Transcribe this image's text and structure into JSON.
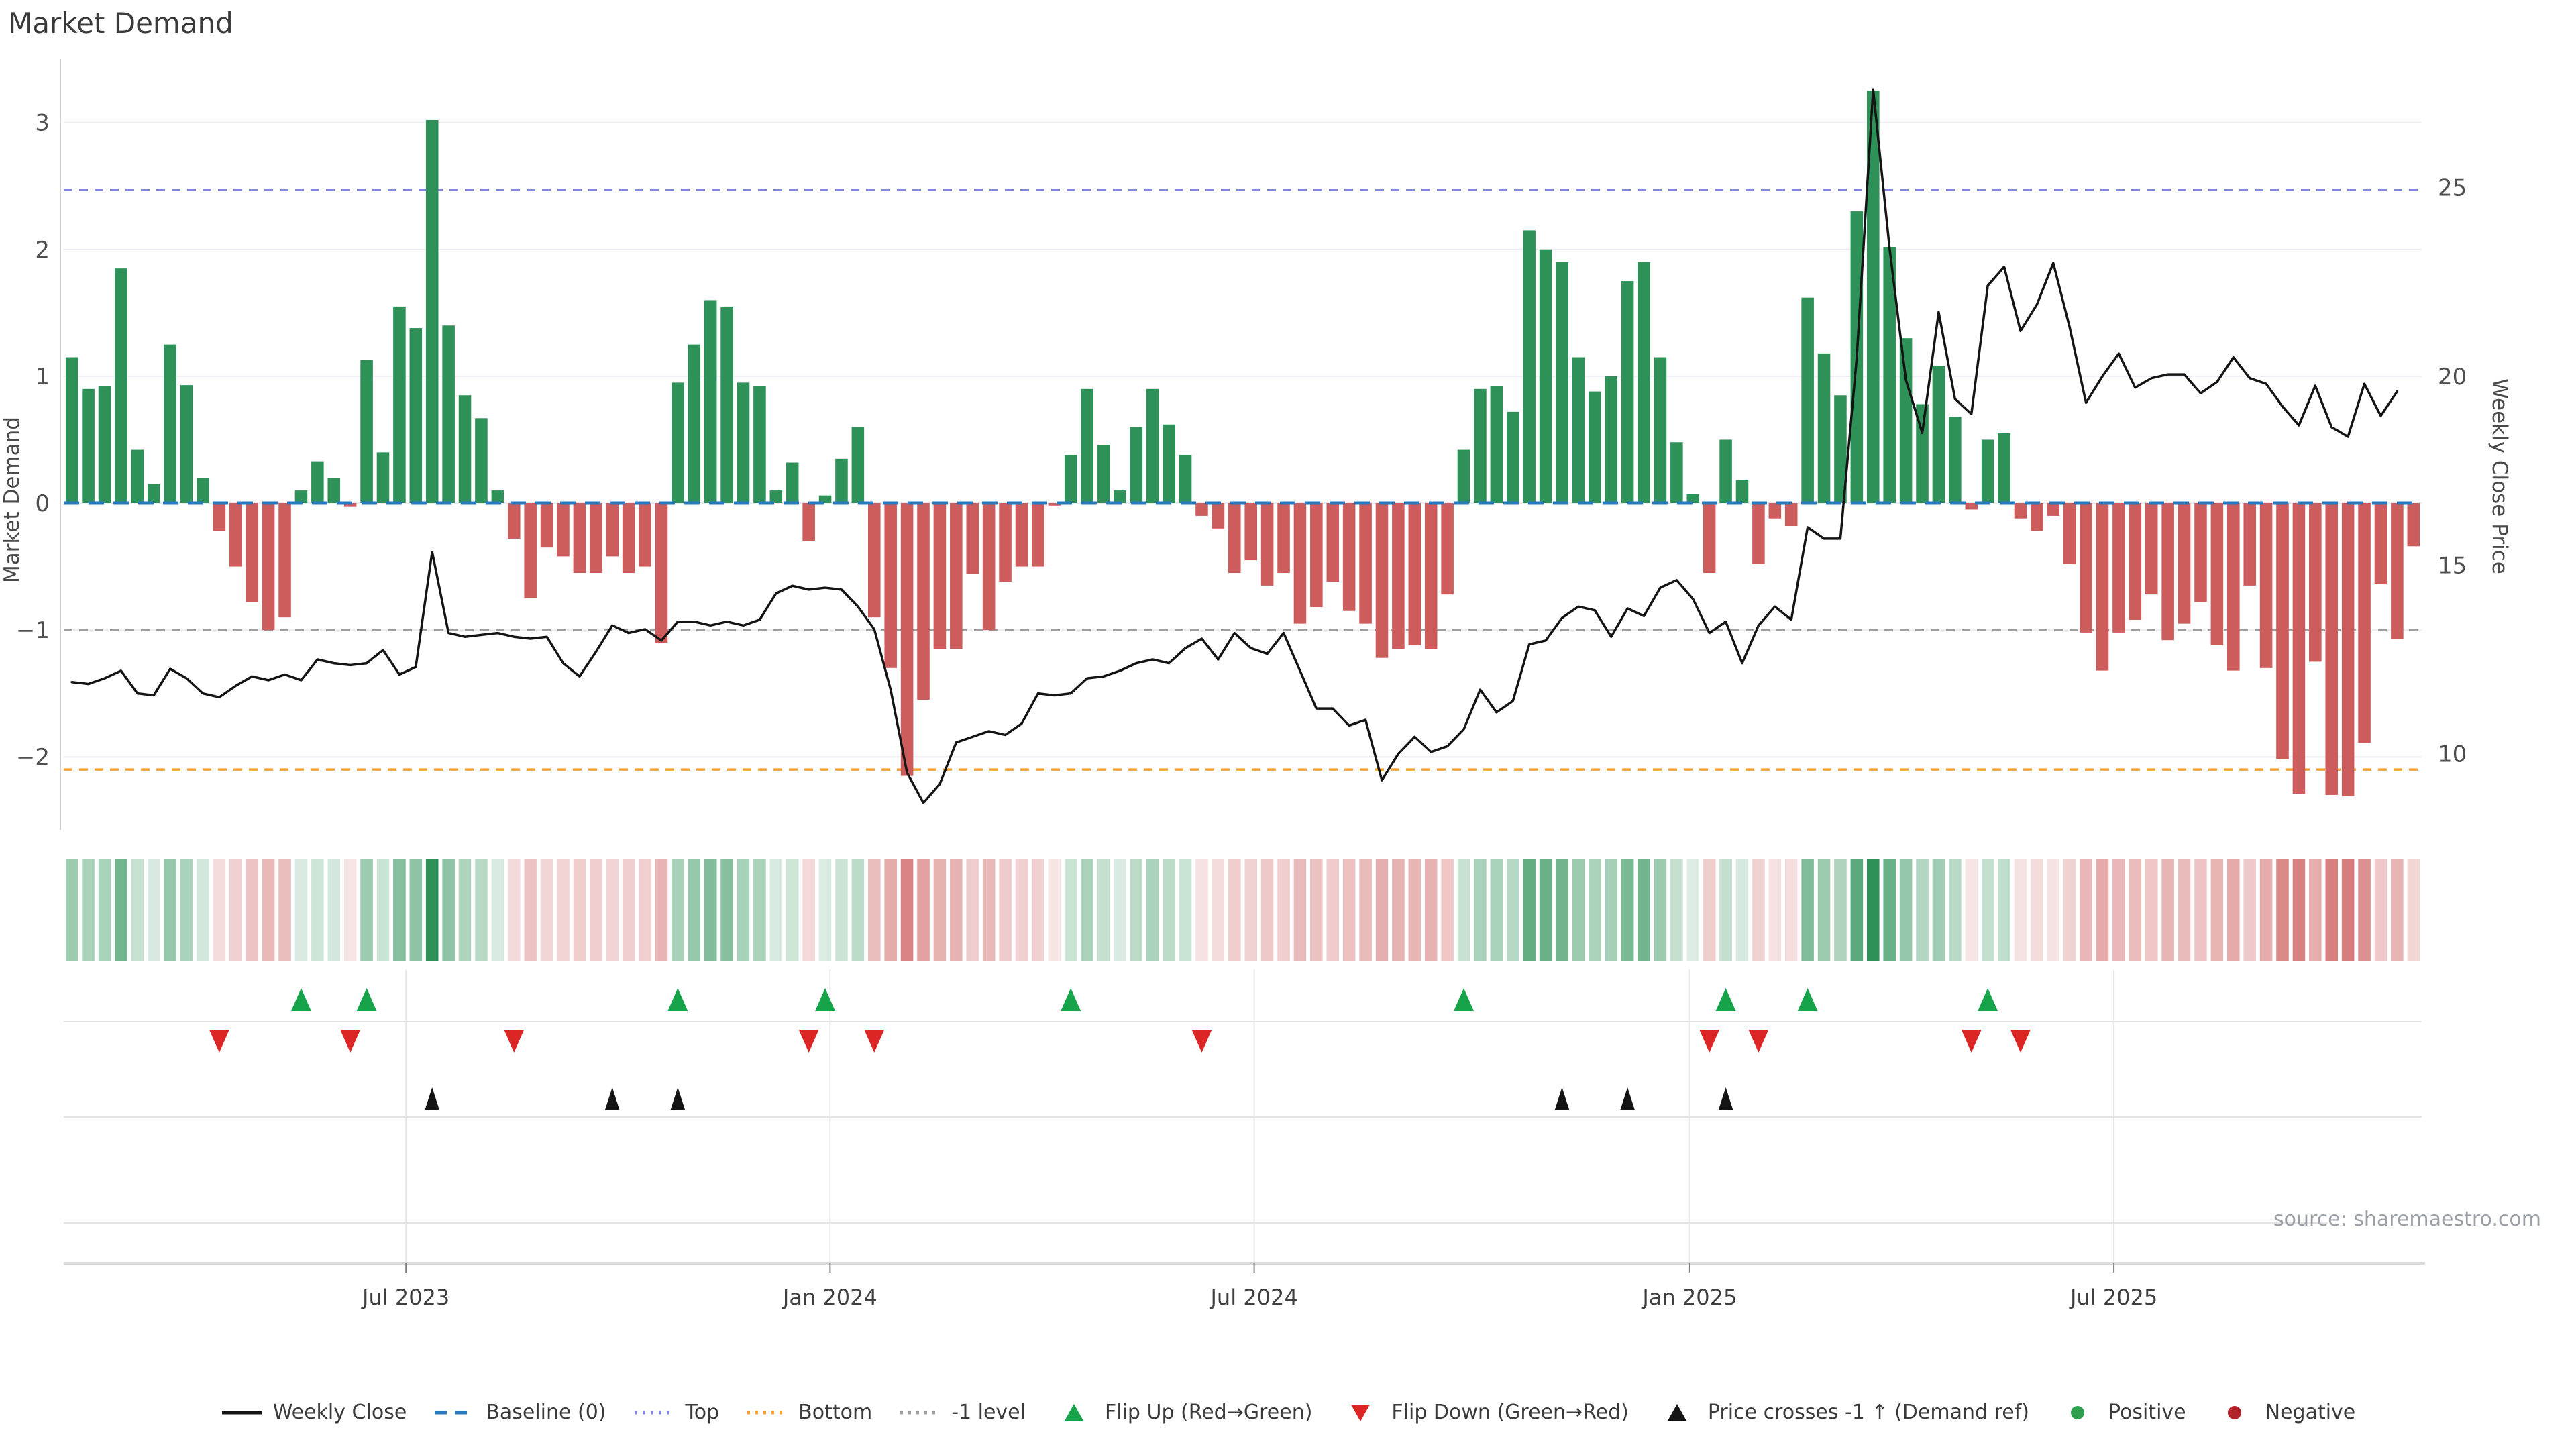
{
  "title": "Market Demand",
  "source_note": "source: sharemaestro.com",
  "axes": {
    "left": {
      "label": "Market Demand",
      "ticks": [
        3,
        2,
        1,
        0,
        -1,
        -2
      ]
    },
    "right": {
      "label": "Weekly Close Price",
      "ticks": [
        25,
        20,
        15,
        10
      ]
    },
    "x": {
      "ticks": [
        "Jul 2023",
        "Jan 2024",
        "Jul 2024",
        "Jan 2025",
        "Jul 2025"
      ],
      "tick_positions": [
        20.4,
        46.3,
        72.2,
        98.8,
        124.7
      ]
    }
  },
  "chart_data": {
    "type": "bar+line combo with heatmap strip and event marker rows",
    "x_unit": "weeks",
    "n_points": 143,
    "series": [
      {
        "name": "Market Demand",
        "type": "bar",
        "axis": "left",
        "values": [
          1.15,
          0.9,
          0.92,
          1.85,
          0.42,
          0.15,
          1.25,
          0.93,
          0.2,
          -0.22,
          -0.5,
          -0.78,
          -1.0,
          -0.9,
          0.1,
          0.33,
          0.2,
          -0.03,
          1.13,
          0.4,
          1.55,
          1.38,
          3.02,
          1.4,
          0.85,
          0.67,
          0.1,
          -0.28,
          -0.75,
          -0.35,
          -0.42,
          -0.55,
          -0.55,
          -0.42,
          -0.55,
          -0.5,
          -1.1,
          0.95,
          1.25,
          1.6,
          1.55,
          0.95,
          0.92,
          0.1,
          0.32,
          -0.3,
          0.06,
          0.35,
          0.6,
          -0.9,
          -1.3,
          -2.15,
          -1.55,
          -1.15,
          -1.15,
          -0.56,
          -1.0,
          -0.62,
          -0.5,
          -0.5,
          -0.02,
          0.38,
          0.9,
          0.46,
          0.1,
          0.6,
          0.9,
          0.62,
          0.38,
          -0.1,
          -0.2,
          -0.55,
          -0.45,
          -0.65,
          -0.55,
          -0.95,
          -0.82,
          -0.62,
          -0.85,
          -0.95,
          -1.22,
          -1.15,
          -1.12,
          -1.15,
          -0.72,
          0.42,
          0.9,
          0.92,
          0.72,
          2.15,
          2.0,
          1.9,
          1.15,
          0.88,
          1.0,
          1.75,
          1.9,
          1.15,
          0.48,
          0.07,
          -0.55,
          0.5,
          0.18,
          -0.48,
          -0.12,
          -0.18,
          1.62,
          1.18,
          0.85,
          2.3,
          3.25,
          2.02,
          1.3,
          0.78,
          1.08,
          0.68,
          -0.05,
          0.5,
          0.55,
          -0.12,
          -0.22,
          -0.1,
          -0.48,
          -1.02,
          -1.32,
          -1.02,
          -0.92,
          -0.72,
          -1.08,
          -0.95,
          -0.78,
          -1.12,
          -1.32,
          -0.65,
          -1.3,
          -2.02,
          -2.29,
          -1.25,
          -2.3,
          -2.31,
          -1.89,
          -0.64,
          -1.07,
          -0.34
        ]
      },
      {
        "name": "Weekly Close",
        "type": "line",
        "axis": "right",
        "values": [
          11.9,
          11.85,
          12.0,
          12.2,
          11.6,
          11.55,
          12.25,
          12.0,
          11.6,
          11.5,
          11.8,
          12.05,
          11.95,
          12.1,
          11.95,
          12.5,
          12.4,
          12.35,
          12.4,
          12.75,
          12.1,
          12.3,
          15.35,
          13.2,
          13.1,
          13.15,
          13.2,
          13.1,
          13.05,
          13.1,
          12.4,
          12.05,
          12.7,
          13.4,
          13.2,
          13.3,
          13.0,
          13.5,
          13.5,
          13.4,
          13.5,
          13.4,
          13.55,
          14.25,
          14.45,
          14.35,
          14.4,
          14.35,
          13.9,
          13.3,
          11.7,
          9.5,
          8.7,
          9.2,
          10.3,
          10.45,
          10.6,
          10.5,
          10.8,
          11.6,
          11.55,
          11.6,
          12.0,
          12.05,
          12.2,
          12.4,
          12.5,
          12.4,
          12.8,
          13.05,
          12.5,
          13.2,
          12.8,
          12.65,
          13.2,
          12.2,
          11.2,
          11.2,
          10.75,
          10.9,
          9.3,
          10.0,
          10.45,
          10.05,
          10.2,
          10.65,
          11.7,
          11.1,
          11.4,
          12.9,
          13.0,
          13.6,
          13.9,
          13.8,
          13.1,
          13.85,
          13.65,
          14.4,
          14.6,
          14.1,
          13.2,
          13.5,
          12.4,
          13.4,
          13.9,
          13.55,
          16.0,
          15.7,
          15.7,
          20.5,
          27.6,
          23.4,
          19.9,
          18.5,
          21.7,
          19.4,
          19.0,
          22.4,
          22.9,
          21.2,
          21.9,
          23.0,
          21.3,
          19.3,
          20.0,
          20.6,
          19.7,
          19.95,
          20.05,
          20.05,
          19.55,
          19.85,
          20.5,
          19.95,
          19.8,
          19.2,
          18.7,
          19.75,
          18.65,
          18.4,
          19.8,
          18.95,
          19.6
        ]
      }
    ],
    "reference_lines": {
      "baseline": 0,
      "top": 2.47,
      "bottom": -2.1,
      "minus_one_level": -1
    },
    "markers": {
      "flip_up_indices": [
        14,
        18,
        37,
        46,
        61,
        85,
        101,
        106,
        117
      ],
      "flip_down_indices": [
        9,
        17,
        27,
        45,
        49,
        69,
        100,
        103,
        116,
        119
      ],
      "price_cross_indices": [
        22,
        33,
        37,
        91,
        95,
        101
      ]
    },
    "heatmap": "sign/intensity strip derived from Market Demand bar values",
    "ylim_left": [
      -2.6,
      3.49
    ],
    "right_axis_mapping": "price = 16.64 + 3.36 * demand",
    "grid": "horizontal only, at left-axis integer ticks",
    "legend_position": "bottom center"
  },
  "legend": [
    {
      "id": "weekly-close",
      "label": "Weekly Close",
      "type": "line",
      "color": "#141414"
    },
    {
      "id": "baseline",
      "label": "Baseline (0)",
      "type": "dash",
      "color": "#2878bd"
    },
    {
      "id": "top",
      "label": "Top",
      "type": "dot",
      "color": "#8585d8"
    },
    {
      "id": "bottom",
      "label": "Bottom",
      "type": "dot",
      "color": "#f5a02e"
    },
    {
      "id": "minus1-level",
      "label": "-1 level",
      "type": "dot",
      "color": "#9e9e9e"
    },
    {
      "id": "flip-up",
      "label": "Flip Up (Red→Green)",
      "type": "tri-up",
      "color": "#16a34a"
    },
    {
      "id": "flip-down",
      "label": "Flip Down (Green→Red)",
      "type": "tri-down",
      "color": "#dc2626"
    },
    {
      "id": "price-cross",
      "label": "Price crosses -1 ↑ (Demand ref)",
      "type": "tri-up",
      "color": "#141414"
    },
    {
      "id": "positive",
      "label": "Positive",
      "type": "circle",
      "color": "#2e9f4f"
    },
    {
      "id": "negative",
      "label": "Negative",
      "type": "circle",
      "color": "#b2222a"
    }
  ],
  "colors": {
    "bar_positive": "#2e9158",
    "bar_negative": "#cd5c5c",
    "price_line": "#141414",
    "baseline": "#2878bd",
    "top_line": "#8585d8",
    "bottom_line": "#f5a02e",
    "minus_one_line": "#9e9e9e",
    "grid": "#ebedf2",
    "spine": "#d9d9d9",
    "tick_text": "#4f4f4f",
    "flip_up": "#16a34a",
    "flip_down": "#dc2626",
    "price_cross": "#141414"
  }
}
